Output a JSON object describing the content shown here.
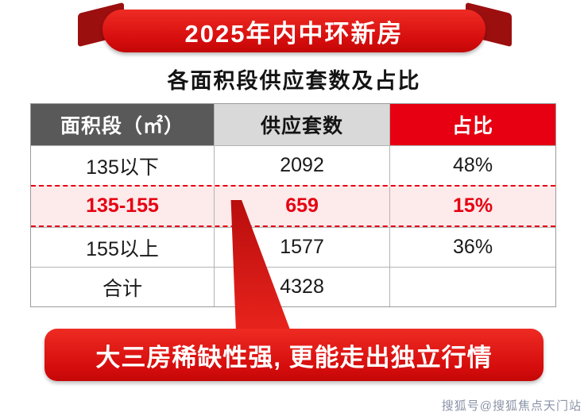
{
  "banner": {
    "title": "2025年内中环新房"
  },
  "subtitle": "各面积段供应套数及占比",
  "table": {
    "headers": [
      "面积段（㎡）",
      "供应套数",
      "占比"
    ],
    "rows": [
      {
        "area": "135以下",
        "supply": "2092",
        "share": "48%"
      },
      {
        "area": "135-155",
        "supply": "659",
        "share": "15%"
      },
      {
        "area": "155以上",
        "supply": "1577",
        "share": "36%"
      },
      {
        "area": "合计",
        "supply": "4328",
        "share": ""
      }
    ]
  },
  "callout": "大三房稀缺性强, 更能走出独立行情",
  "watermark": "搜狐号@搜狐焦点天门站",
  "colors": {
    "ribbon_red": "#e60012",
    "ribbon_tail": "#9c0f0f",
    "header_dark_gray": "#595959",
    "header_light_gray": "#d9d9d9",
    "highlight_pink": "#fdeaea",
    "highlight_red": "#e60012"
  },
  "chart_data": {
    "type": "table",
    "title": "2025年内中环新房 各面积段供应套数及占比",
    "columns": [
      "面积段（㎡）",
      "供应套数",
      "占比"
    ],
    "rows": [
      [
        "135以下",
        2092,
        "48%"
      ],
      [
        "135-155",
        659,
        "15%"
      ],
      [
        "155以上",
        1577,
        "36%"
      ],
      [
        "合计",
        4328,
        ""
      ]
    ],
    "highlighted_row": "135-155",
    "annotation": "大三房稀缺性强, 更能走出独立行情"
  }
}
